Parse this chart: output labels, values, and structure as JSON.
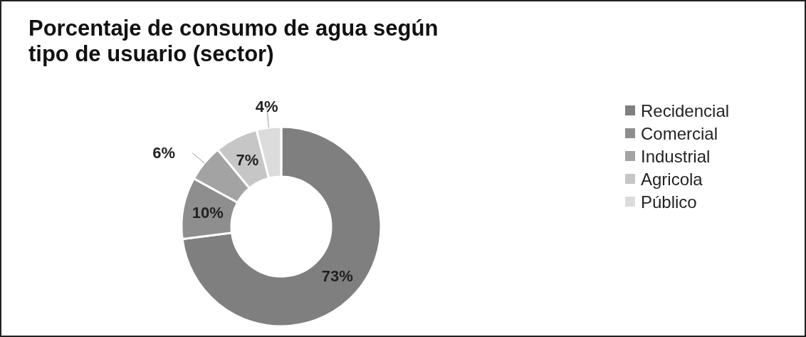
{
  "chart_data": {
    "type": "donut",
    "title": "Porcentaje de consumo de agua según\ntipo de usuario (sector)",
    "categories": [
      "Recidencial",
      "Comercial",
      "Industrial",
      "Agricola",
      "Público"
    ],
    "values": [
      73,
      10,
      6,
      7,
      4
    ],
    "colors": [
      "#7f7f7f",
      "#8e8e8e",
      "#a3a3a3",
      "#c6c6c6",
      "#dcdcdc"
    ],
    "value_labels": [
      "73%",
      "10%",
      "6%",
      "7%",
      "4%"
    ],
    "legend": "right"
  }
}
